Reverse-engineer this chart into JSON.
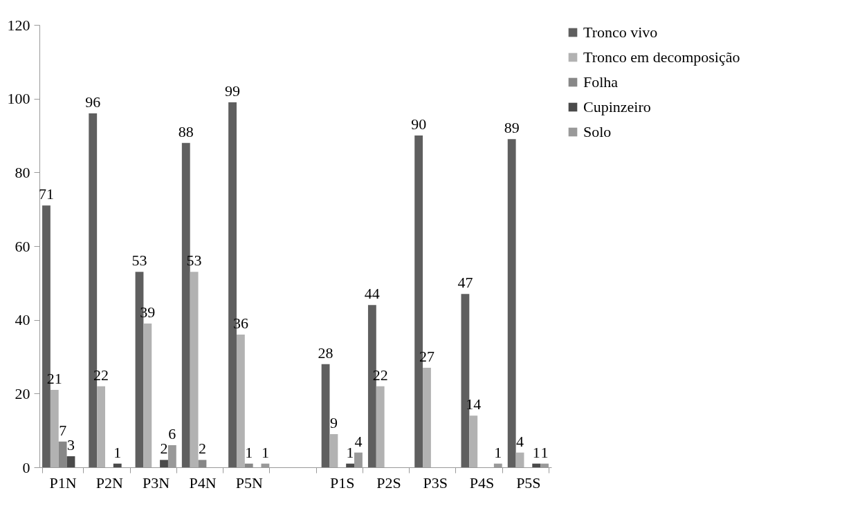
{
  "chart_data": {
    "type": "bar",
    "categories": [
      "P1N",
      "P2N",
      "P3N",
      "P4N",
      "P5N",
      null,
      "P1S",
      "P2S",
      "P3S",
      "P4S",
      "P5S"
    ],
    "series": [
      {
        "name": "Tronco vivo",
        "color": "#5f5f5f",
        "values": [
          71,
          96,
          53,
          88,
          99,
          null,
          28,
          44,
          90,
          47,
          89
        ]
      },
      {
        "name": "Tronco em decomposição",
        "color": "#b2b2b2",
        "values": [
          21,
          22,
          39,
          53,
          36,
          null,
          9,
          22,
          27,
          14,
          4
        ]
      },
      {
        "name": "Folha",
        "color": "#878787",
        "values": [
          7,
          null,
          null,
          2,
          1,
          null,
          null,
          null,
          null,
          null,
          null
        ]
      },
      {
        "name": "Cupinzeiro",
        "color": "#4a4a4a",
        "values": [
          3,
          1,
          2,
          null,
          null,
          null,
          1,
          null,
          null,
          null,
          1
        ]
      },
      {
        "name": "Solo",
        "color": "#999999",
        "values": [
          null,
          null,
          6,
          null,
          1,
          null,
          4,
          null,
          null,
          1,
          1
        ]
      }
    ],
    "ylim": [
      0,
      120
    ],
    "yticks": [
      0,
      20,
      40,
      60,
      80,
      100,
      120
    ],
    "grid": false,
    "legend": "right",
    "data_labels": true
  }
}
